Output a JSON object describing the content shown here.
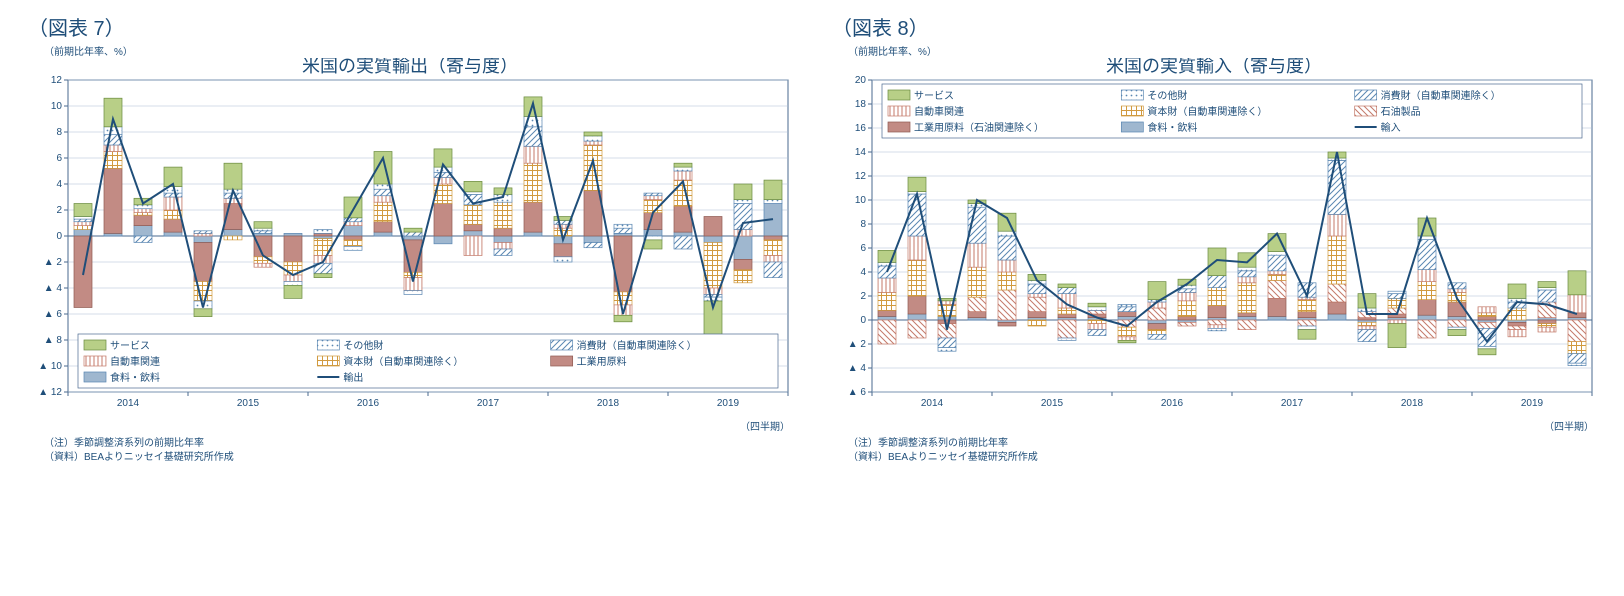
{
  "colors": {
    "text": "#1f4e79",
    "border": "#4a6a8f",
    "grid": "#a9bcd2",
    "plot_bg": "#ffffff",
    "legend_bg": "#ffffff"
  },
  "series_style": {
    "services": {
      "fill": "#b8cf87",
      "stroke": "#6a8a3f",
      "hatch": "none"
    },
    "other": {
      "fill": "#ffffff",
      "stroke": "#5a87b2",
      "hatch": "dots"
    },
    "consumer": {
      "fill": "#ffffff",
      "stroke": "#5a87b2",
      "hatch": "diag"
    },
    "auto": {
      "fill": "#ffffff",
      "stroke": "#c47a6a",
      "hatch": "vert"
    },
    "capital": {
      "fill": "#ffffff",
      "stroke": "#d19a3f",
      "hatch": "cross"
    },
    "petroleum": {
      "fill": "#ffffff",
      "stroke": "#c47a6a",
      "hatch": "diag2"
    },
    "industrial": {
      "fill": "#c28b84",
      "stroke": "#8f5a52",
      "hatch": "none"
    },
    "food": {
      "fill": "#9fb7cf",
      "stroke": "#5a87b2",
      "hatch": "none"
    },
    "line": {
      "stroke": "#1f4e79",
      "width": 2
    }
  },
  "chart7": {
    "fig_label": "（図表 7）",
    "title": "米国の実質輸出（寄与度）",
    "y_unit": "（前期比年率、%）",
    "x_unit": "（四半期）",
    "note1": "（注）季節調整済系列の前期比年率",
    "note2": "（資料）BEAよりニッセイ基礎研究所作成",
    "ymin": -12,
    "ymax": 12,
    "ystep": 2,
    "neg_prefix": "▲ ",
    "xaxis_labels": [
      "2014",
      "",
      "",
      "",
      "2015",
      "",
      "",
      "",
      "2016",
      "",
      "",
      "",
      "2017",
      "",
      "",
      "",
      "2018",
      "",
      "",
      "",
      "2019",
      "",
      "",
      ""
    ],
    "legend_labels": {
      "services": "サービス",
      "other": "その他財",
      "consumer": "消費財（自動車関連除く）",
      "auto": "自動車関連",
      "capital": "資本財（自動車関連除く）",
      "industrial": "工業用原料",
      "food": "食料・飲料",
      "line": "輸出"
    },
    "legend_order": [
      "services",
      "other",
      "consumer",
      "auto",
      "capital",
      "industrial",
      "food",
      "line"
    ],
    "stack_order": [
      "food",
      "industrial",
      "capital",
      "auto",
      "consumer",
      "other",
      "services"
    ],
    "bars": [
      {
        "services": 1.0,
        "other": 0.2,
        "consumer": 0.2,
        "auto": 0.3,
        "capital": 0.3,
        "industrial": -5.5,
        "food": 0.5
      },
      {
        "services": 2.2,
        "other": 0.6,
        "consumer": 0.8,
        "auto": 0.5,
        "capital": 1.3,
        "industrial": 5.0,
        "food": 0.2
      },
      {
        "services": 0.5,
        "other": 0.3,
        "consumer": -0.5,
        "auto": 0.3,
        "capital": 0.2,
        "industrial": 0.8,
        "food": 0.8
      },
      {
        "services": 1.5,
        "other": 0.5,
        "consumer": 0.3,
        "auto": 1.0,
        "capital": 0.7,
        "industrial": 1.0,
        "food": 0.3
      },
      {
        "services": -0.6,
        "other": -0.6,
        "consumer": 0.2,
        "auto": 0.2,
        "capital": -1.5,
        "industrial": -3.0,
        "food": -0.5
      },
      {
        "services": 2.0,
        "other": 0.3,
        "consumer": 0.4,
        "auto": 0.4,
        "capital": -0.3,
        "industrial": 2.0,
        "food": 0.5
      },
      {
        "services": 0.5,
        "other": 0.2,
        "consumer": 0.2,
        "auto": -0.3,
        "capital": -0.5,
        "industrial": -1.6,
        "food": 0.2
      },
      {
        "services": -1.0,
        "other": -0.3,
        "consumer": 0.0,
        "auto": -0.5,
        "capital": -1.0,
        "industrial": -2.0,
        "food": 0.2
      },
      {
        "services": -0.3,
        "other": 0.3,
        "consumer": -0.8,
        "auto": -0.6,
        "capital": -1.3,
        "industrial": 0.2,
        "food": -0.2
      },
      {
        "services": 1.6,
        "other": -0.3,
        "consumer": 0.3,
        "auto": 0.3,
        "capital": -0.5,
        "industrial": -0.3,
        "food": 0.8
      },
      {
        "services": 2.5,
        "other": 0.4,
        "consumer": 0.5,
        "auto": 0.5,
        "capital": 1.5,
        "industrial": 0.8,
        "food": 0.3
      },
      {
        "services": 0.3,
        "other": -0.3,
        "consumer": 0.3,
        "auto": -1.0,
        "capital": -0.4,
        "industrial": -2.5,
        "food": -0.3
      },
      {
        "services": 1.4,
        "other": 0.4,
        "consumer": 0.4,
        "auto": 0.5,
        "capital": 1.5,
        "industrial": 2.5,
        "food": -0.6
      },
      {
        "services": 0.8,
        "other": 0.2,
        "consumer": 0.8,
        "auto": -1.5,
        "capital": 1.5,
        "industrial": 0.5,
        "food": 0.4
      },
      {
        "services": 0.5,
        "other": 0.6,
        "consumer": -0.5,
        "auto": -0.5,
        "capital": 2.0,
        "industrial": 0.6,
        "food": -0.5
      },
      {
        "services": 1.5,
        "other": 0.8,
        "consumer": 1.5,
        "auto": 1.3,
        "capital": 3.0,
        "industrial": 2.3,
        "food": 0.3
      },
      {
        "services": 0.3,
        "other": -0.4,
        "consumer": 0.3,
        "auto": 0.3,
        "capital": 0.6,
        "industrial": -1.0,
        "food": -0.6
      },
      {
        "services": 0.3,
        "other": 0.4,
        "consumer": -0.4,
        "auto": 0.3,
        "capital": 3.5,
        "industrial": 3.5,
        "food": -0.5
      },
      {
        "services": -0.5,
        "other": 0.3,
        "consumer": 0.4,
        "auto": -0.8,
        "capital": -1.0,
        "industrial": -4.3,
        "food": 0.2
      },
      {
        "services": -0.7,
        "other": -0.3,
        "consumer": 0.2,
        "auto": 0.3,
        "capital": 1.0,
        "industrial": 1.3,
        "food": 0.5
      },
      {
        "services": 0.3,
        "other": 0.3,
        "consumer": -1.0,
        "auto": 0.7,
        "capital": 2.0,
        "industrial": 2.0,
        "food": 0.3
      },
      {
        "services": -3.0,
        "other": -0.3,
        "consumer": -0.2,
        "auto": -0.5,
        "capital": -3.5,
        "industrial": 1.5,
        "food": -0.5
      },
      {
        "services": 1.2,
        "other": 0.3,
        "consumer": 2.0,
        "auto": 0.5,
        "capital": -1.0,
        "industrial": -0.8,
        "food": -1.8
      },
      {
        "services": 1.5,
        "other": 0.3,
        "consumer": -1.2,
        "auto": -0.5,
        "capital": -1.2,
        "industrial": -0.3,
        "food": 2.5
      }
    ],
    "line_values": [
      -3.0,
      9.0,
      2.5,
      4.0,
      -5.5,
      3.5,
      -1.5,
      -3.0,
      -2.0,
      2.0,
      6.0,
      -3.5,
      5.5,
      2.5,
      3.0,
      10.2,
      -0.3,
      5.8,
      -6.0,
      1.8,
      4.2,
      -5.5,
      1.0,
      1.3
    ]
  },
  "chart8": {
    "fig_label": "（図表 8）",
    "title": "米国の実質輸入（寄与度）",
    "y_unit": "（前期比年率、%）",
    "x_unit": "（四半期）",
    "note1": "（注）季節調整済系列の前期比年率",
    "note2": "（資料）BEAよりニッセイ基礎研究所作成",
    "ymin": -6,
    "ymax": 20,
    "ystep": 2,
    "neg_prefix": "▲ ",
    "xaxis_labels": [
      "2014",
      "",
      "",
      "",
      "2015",
      "",
      "",
      "",
      "2016",
      "",
      "",
      "",
      "2017",
      "",
      "",
      "",
      "2018",
      "",
      "",
      "",
      "2019",
      "",
      "",
      ""
    ],
    "legend_labels": {
      "services": "サービス",
      "other": "その他財",
      "consumer": "消費財（自動車関連除く）",
      "auto": "自動車関連",
      "capital": "資本財（自動車関連除く）",
      "petroleum": "石油製品",
      "industrial": "工業用原料（石油関連除く）",
      "food": "食料・飲料",
      "line": "輸入"
    },
    "legend_order": [
      "services",
      "other",
      "consumer",
      "auto",
      "capital",
      "petroleum",
      "industrial",
      "food",
      "line"
    ],
    "stack_order": [
      "food",
      "industrial",
      "petroleum",
      "capital",
      "auto",
      "consumer",
      "other",
      "services"
    ],
    "bars": [
      {
        "services": 1.0,
        "other": 0.3,
        "consumer": 1.0,
        "auto": 1.2,
        "capital": 1.5,
        "petroleum": -2.0,
        "industrial": 0.5,
        "food": 0.3
      },
      {
        "services": 1.2,
        "other": 0.2,
        "consumer": 3.5,
        "auto": 2.0,
        "capital": 3.0,
        "petroleum": -1.5,
        "industrial": 1.5,
        "food": 0.5
      },
      {
        "services": 0.2,
        "other": -0.3,
        "consumer": -0.8,
        "auto": 0.3,
        "capital": 1.0,
        "petroleum": -1.2,
        "industrial": -0.3,
        "food": 0.3
      },
      {
        "services": 0.3,
        "other": 0.3,
        "consumer": 3.0,
        "auto": 2.0,
        "capital": 2.5,
        "petroleum": 1.2,
        "industrial": 0.5,
        "food": 0.2
      },
      {
        "services": 1.5,
        "other": 0.4,
        "consumer": 2.0,
        "auto": 1.0,
        "capital": 1.5,
        "petroleum": 2.5,
        "industrial": -0.3,
        "food": -0.2
      },
      {
        "services": 0.5,
        "other": 0.3,
        "consumer": 0.8,
        "auto": 0.3,
        "capital": -0.5,
        "petroleum": 1.2,
        "industrial": 0.5,
        "food": 0.2
      },
      {
        "services": 0.3,
        "other": -0.2,
        "consumer": 0.5,
        "auto": 1.2,
        "capital": 0.5,
        "petroleum": -1.5,
        "industrial": 0.3,
        "food": 0.2
      },
      {
        "services": 0.3,
        "other": 0.3,
        "consumer": -0.5,
        "auto": -0.5,
        "capital": -0.3,
        "petroleum": 0.3,
        "industrial": 0.3,
        "food": 0.2
      },
      {
        "services": -0.2,
        "other": 0.2,
        "consumer": 0.4,
        "auto": -0.3,
        "capital": -0.8,
        "petroleum": -0.6,
        "industrial": 0.4,
        "food": 0.3
      },
      {
        "services": 1.5,
        "other": 0.2,
        "consumer": -0.4,
        "auto": 0.5,
        "capital": -0.4,
        "petroleum": 1.0,
        "industrial": -0.5,
        "food": -0.3
      },
      {
        "services": 0.5,
        "other": 0.3,
        "consumer": 0.3,
        "auto": 0.7,
        "capital": 1.3,
        "petroleum": -0.3,
        "industrial": 0.3,
        "food": -0.2
      },
      {
        "services": 2.3,
        "other": -0.2,
        "consumer": 1.0,
        "auto": -0.3,
        "capital": 1.5,
        "petroleum": -0.4,
        "industrial": 1.0,
        "food": 0.2
      },
      {
        "services": 1.2,
        "other": 0.3,
        "consumer": 0.5,
        "auto": 0.5,
        "capital": 2.5,
        "petroleum": -0.8,
        "industrial": 0.3,
        "food": 0.3
      },
      {
        "services": 1.5,
        "other": 0.3,
        "consumer": 1.3,
        "auto": 0.3,
        "capital": 0.5,
        "petroleum": 1.5,
        "industrial": 1.5,
        "food": 0.3
      },
      {
        "services": -0.8,
        "other": -0.3,
        "consumer": 1.2,
        "auto": 0.2,
        "capital": 1.0,
        "petroleum": -0.5,
        "industrial": 0.5,
        "food": 0.2
      },
      {
        "services": 0.5,
        "other": 0.2,
        "consumer": 4.5,
        "auto": 1.8,
        "capital": 4.0,
        "petroleum": 1.5,
        "industrial": 1.0,
        "food": 0.5
      },
      {
        "services": 1.2,
        "other": 0.3,
        "consumer": -1.0,
        "auto": -0.3,
        "capital": -0.3,
        "petroleum": 0.5,
        "industrial": 0.2,
        "food": -0.2
      },
      {
        "services": -2.0,
        "other": 0.2,
        "consumer": 0.4,
        "auto": -0.3,
        "capital": 0.8,
        "petroleum": 0.5,
        "industrial": 0.3,
        "food": 0.2
      },
      {
        "services": 1.5,
        "other": 0.3,
        "consumer": 2.5,
        "auto": 1.0,
        "capital": 1.5,
        "petroleum": -1.5,
        "industrial": 1.3,
        "food": 0.4
      },
      {
        "services": -0.5,
        "other": -0.2,
        "consumer": 0.5,
        "auto": 0.3,
        "capital": 0.8,
        "petroleum": -0.6,
        "industrial": 1.2,
        "food": 0.3
      },
      {
        "services": -0.5,
        "other": -0.2,
        "consumer": -1.5,
        "auto": 0.5,
        "capital": 0.3,
        "petroleum": -0.5,
        "industrial": 0.3,
        "food": -0.2
      },
      {
        "services": 1.2,
        "other": 0.3,
        "consumer": 0.5,
        "auto": -0.6,
        "capital": 1.0,
        "petroleum": -0.3,
        "industrial": -0.3,
        "food": -0.2
      },
      {
        "services": 0.5,
        "other": 0.2,
        "consumer": 1.0,
        "auto": -0.4,
        "capital": -0.3,
        "petroleum": 1.3,
        "industrial": -0.3,
        "food": 0.2
      },
      {
        "services": 2.0,
        "other": -0.2,
        "consumer": -0.8,
        "auto": 1.5,
        "capital": -1.0,
        "petroleum": -1.8,
        "industrial": 0.4,
        "food": 0.2
      }
    ],
    "line_values": [
      4.0,
      10.5,
      -0.8,
      10.0,
      8.5,
      3.3,
      1.3,
      0.2,
      -0.5,
      1.5,
      3.0,
      5.0,
      4.8,
      7.2,
      2.0,
      14.0,
      0.5,
      0.5,
      8.5,
      1.8,
      -1.8,
      1.5,
      1.3,
      0.5
    ]
  }
}
